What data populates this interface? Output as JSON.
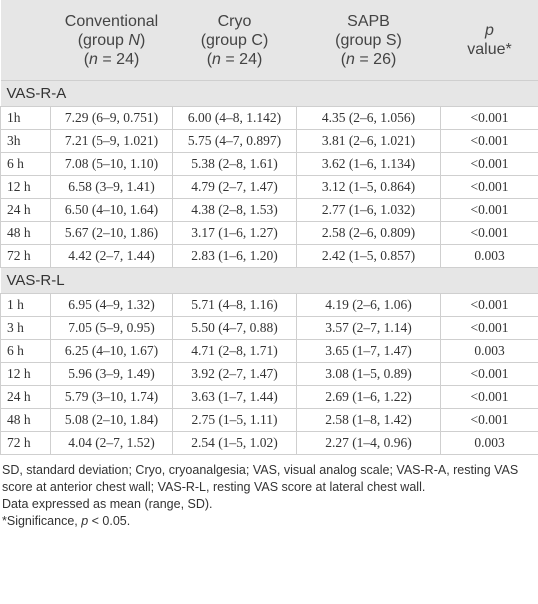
{
  "header": [
    [
      "Conventional",
      "(group ",
      "N",
      ")",
      "(",
      "n",
      " = 24)"
    ],
    [
      "Cryo",
      "(group C)",
      "(",
      "n",
      " = 24)"
    ],
    [
      "SAPB",
      "(group S)",
      "(",
      "n",
      " = 26)"
    ],
    [
      "p",
      "value*"
    ]
  ],
  "sections": [
    {
      "title": "VAS-R-A",
      "rows": [
        [
          "1h",
          "7.29 (6–9, 0.751)",
          "6.00 (4–8, 1.142)",
          "4.35 (2–6, 1.056)",
          "<0.001"
        ],
        [
          "3h",
          "7.21 (5–9, 1.021)",
          "5.75 (4–7, 0.897)",
          "3.81 (2–6, 1.021)",
          "<0.001"
        ],
        [
          "6 h",
          "7.08 (5–10, 1.10)",
          "5.38 (2–8, 1.61)",
          "3.62 (1–6, 1.134)",
          "<0.001"
        ],
        [
          "12 h",
          "6.58 (3–9, 1.41)",
          "4.79 (2–7, 1.47)",
          "3.12 (1–5, 0.864)",
          "<0.001"
        ],
        [
          "24 h",
          "6.50 (4–10, 1.64)",
          "4.38 (2–8, 1.53)",
          "2.77 (1–6, 1.032)",
          "<0.001"
        ],
        [
          "48 h",
          "5.67 (2–10, 1.86)",
          "3.17 (1–6, 1.27)",
          "2.58 (2–6, 0.809)",
          "<0.001"
        ],
        [
          "72 h",
          "4.42 (2–7, 1.44)",
          "2.83 (1–6, 1.20)",
          "2.42 (1–5, 0.857)",
          "0.003"
        ]
      ]
    },
    {
      "title": "VAS-R-L",
      "rows": [
        [
          "1 h",
          "6.95 (4–9, 1.32)",
          "5.71 (4–8, 1.16)",
          "4.19 (2–6, 1.06)",
          "<0.001"
        ],
        [
          "3 h",
          "7.05 (5–9, 0.95)",
          "5.50 (4–7, 0.88)",
          "3.57 (2–7, 1.14)",
          "<0.001"
        ],
        [
          "6 h",
          "6.25 (4–10, 1.67)",
          "4.71 (2–8, 1.71)",
          "3.65 (1–7, 1.47)",
          "0.003"
        ],
        [
          "12 h",
          "5.96 (3–9, 1.49)",
          "3.92 (2–7, 1.47)",
          "3.08 (1–5, 0.89)",
          "<0.001"
        ],
        [
          "24 h",
          "5.79 (3–10, 1.74)",
          "3.63 (1–7, 1.44)",
          "2.69 (1–6, 1.22)",
          "<0.001"
        ],
        [
          "48 h",
          "5.08 (2–10, 1.84)",
          "2.75 (1–5, 1.11)",
          "2.58 (1–8, 1.42)",
          "<0.001"
        ],
        [
          "72 h",
          "4.04 (2–7, 1.52)",
          "2.54 (1–5, 1.02)",
          "2.27 (1–4, 0.96)",
          "0.003"
        ]
      ]
    }
  ],
  "notes": [
    "SD, standard deviation; Cryo, cryoanalgesia; VAS, visual analog scale; VAS-R-A, resting VAS score at anterior chest wall; VAS-R-L, resting VAS score at lateral chest wall.",
    "Data expressed as mean (range, SD).",
    [
      "*Significance, ",
      "p",
      " < 0.05."
    ]
  ]
}
